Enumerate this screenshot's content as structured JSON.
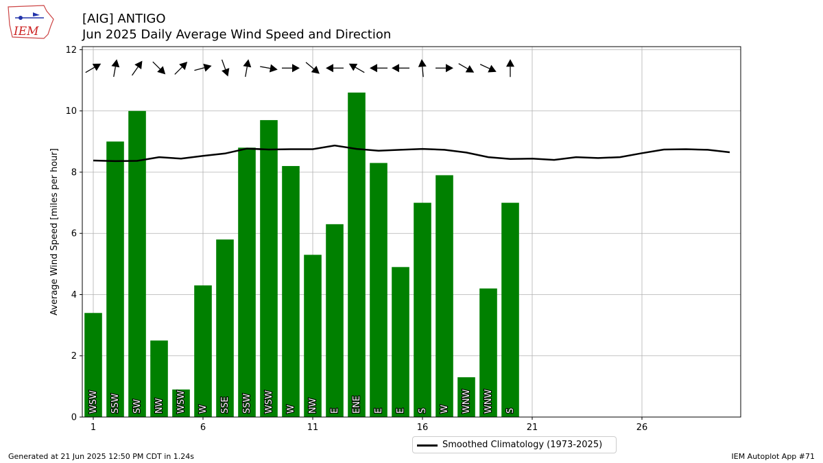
{
  "header": {
    "title_line1": "[AIG] ANTIGO",
    "title_line2": "Jun 2025 Daily Average Wind Speed and Direction"
  },
  "logo": {
    "text": "IEM",
    "color": "#cc2222"
  },
  "footer": {
    "left": "Generated at 21 Jun 2025 12:50 PM CDT in 1.24s",
    "right": "IEM Autoplot App #71"
  },
  "legend": {
    "label": "Smoothed Climatology (1973-2025)"
  },
  "colors": {
    "bar": "#008000",
    "line": "#000000",
    "grid": "#b0b0b0",
    "arrow": "#000000"
  },
  "chart_data": {
    "type": "bar",
    "title": "[AIG] ANTIGO\nJun 2025 Daily Average Wind Speed and Direction",
    "xlabel": "",
    "ylabel": "Average Wind Speed [miles per hour]",
    "xlim": [
      0.5,
      30.5
    ],
    "ylim": [
      0,
      12.1
    ],
    "xticks": [
      1,
      6,
      11,
      16,
      21,
      26
    ],
    "yticks": [
      0,
      2,
      4,
      6,
      8,
      10,
      12
    ],
    "grid": true,
    "legend_position": "below",
    "bars": {
      "days": [
        1,
        2,
        3,
        4,
        5,
        6,
        7,
        8,
        9,
        10,
        11,
        12,
        13,
        14,
        15,
        16,
        17,
        18,
        19,
        20
      ],
      "values": [
        3.4,
        9.0,
        10.0,
        2.5,
        0.9,
        4.3,
        5.8,
        8.8,
        9.7,
        8.2,
        5.3,
        6.3,
        10.6,
        8.3,
        4.9,
        7.0,
        7.9,
        1.3,
        4.2,
        7.0
      ],
      "directions": [
        "WSW",
        "SSW",
        "SW",
        "NW",
        "WSW",
        "W",
        "SSE",
        "SSW",
        "WSW",
        "W",
        "NW",
        "E",
        "ENE",
        "E",
        "E",
        "S",
        "W",
        "WNW",
        "WNW",
        "S"
      ],
      "arrow_angles_deg": [
        30,
        80,
        55,
        -45,
        45,
        15,
        -70,
        80,
        -10,
        0,
        -40,
        180,
        150,
        180,
        180,
        95,
        0,
        -30,
        -25,
        90
      ]
    },
    "series": [
      {
        "name": "Smoothed Climatology (1973-2025)",
        "type": "line",
        "x": [
          1,
          2,
          3,
          4,
          5,
          6,
          7,
          8,
          9,
          10,
          11,
          12,
          13,
          14,
          15,
          16,
          17,
          18,
          19,
          20,
          21,
          22,
          23,
          24,
          25,
          26,
          27,
          28,
          29,
          30
        ],
        "values": [
          8.38,
          8.36,
          8.37,
          8.49,
          8.44,
          8.53,
          8.61,
          8.77,
          8.74,
          8.75,
          8.75,
          8.87,
          8.76,
          8.7,
          8.73,
          8.76,
          8.73,
          8.64,
          8.49,
          8.43,
          8.44,
          8.4,
          8.49,
          8.46,
          8.49,
          8.62,
          8.74,
          8.75,
          8.73,
          8.65
        ]
      }
    ]
  }
}
